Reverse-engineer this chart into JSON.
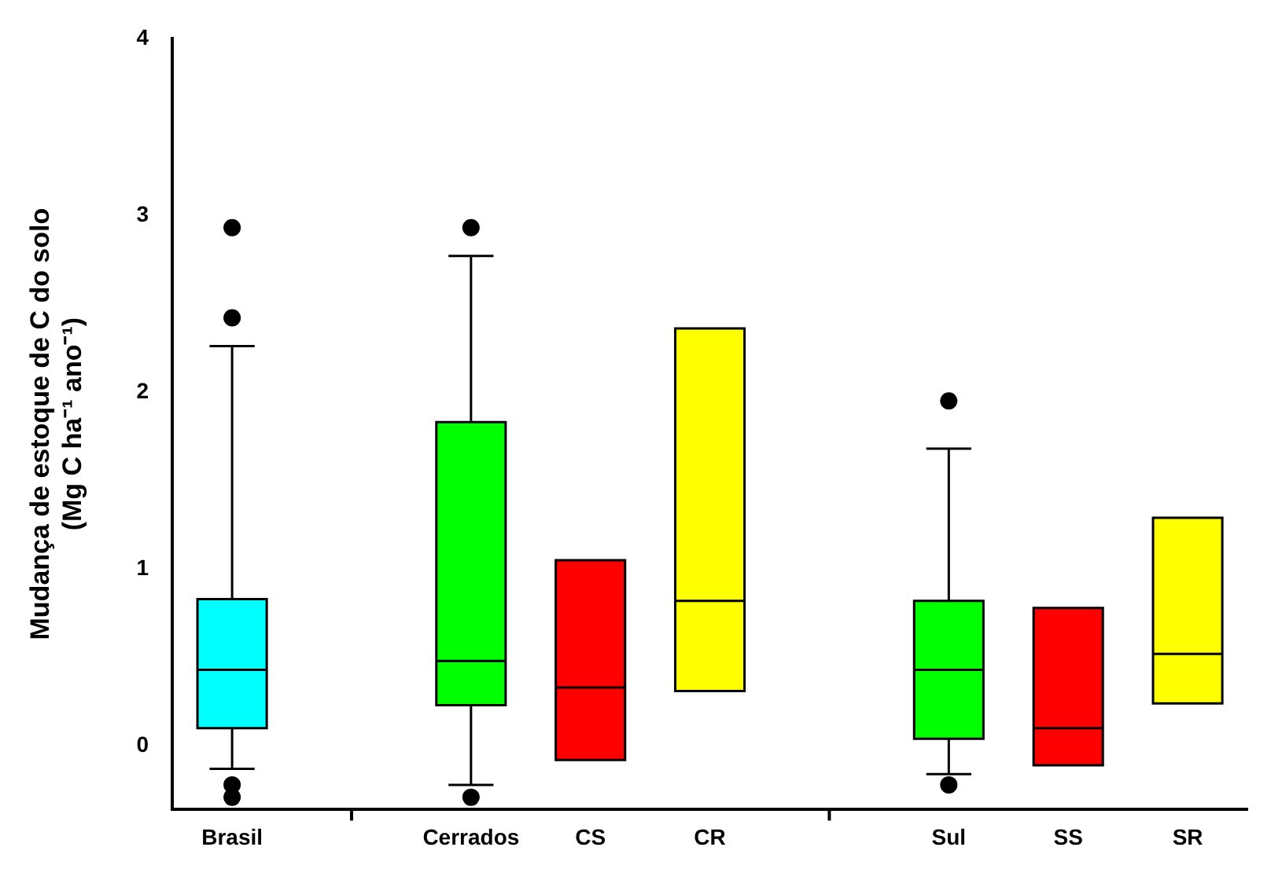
{
  "chart_data": {
    "type": "box",
    "ylabel": "Mudança de estoque de C do solo\n(Mg C ha⁻¹ ano⁻¹)",
    "categories": [
      "Brasil",
      null,
      "Cerrados",
      "CS",
      "CR",
      null,
      "Sul",
      "SS",
      "SR"
    ],
    "colors": [
      "#00ffff",
      null,
      "#00ff00",
      "#ff0000",
      "#ffff00",
      null,
      "#00ff00",
      "#ff0000",
      "#ffff00"
    ],
    "boxes": [
      {
        "low": -0.13,
        "q1": 0.1,
        "median": 0.43,
        "q3": 0.83,
        "high": 2.26,
        "outliers": [
          2.93,
          2.42,
          -0.22,
          -0.29
        ]
      },
      null,
      {
        "low": -0.22,
        "q1": 0.23,
        "median": 0.48,
        "q3": 1.83,
        "high": 2.77,
        "outliers": [
          2.93,
          -0.29
        ]
      },
      {
        "low": -0.08,
        "q1": -0.08,
        "median": 0.33,
        "q3": 1.05,
        "high": 1.05
      },
      {
        "low": 0.31,
        "q1": 0.31,
        "median": 0.82,
        "q3": 2.36,
        "high": 2.36
      },
      null,
      {
        "low": -0.16,
        "q1": 0.04,
        "median": 0.43,
        "q3": 0.82,
        "high": 1.68,
        "outliers": [
          1.95,
          -0.22
        ]
      },
      {
        "low": -0.11,
        "q1": -0.11,
        "median": 0.1,
        "q3": 0.78,
        "high": 0.78
      },
      {
        "low": 0.24,
        "q1": 0.24,
        "median": 0.52,
        "q3": 1.29,
        "high": 1.29
      }
    ],
    "ylim": [
      -0.36,
      4
    ],
    "yticks": [
      0,
      1,
      2,
      3,
      4
    ],
    "grid": false,
    "legend": false
  }
}
